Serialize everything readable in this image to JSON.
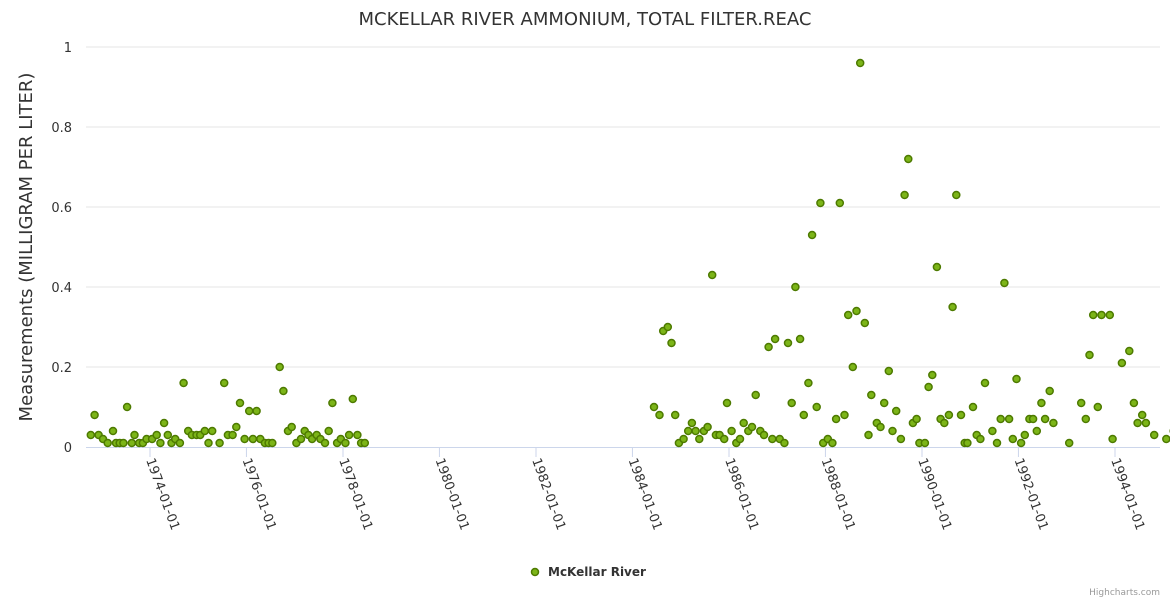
{
  "chart_data": {
    "type": "scatter",
    "title": "MCKELLAR RIVER AMMONIUM, TOTAL FILTER.REAC",
    "ylabel": "Measurements (MILLIGRAM PER LITER)",
    "xlabel": "",
    "ylim": [
      0,
      1
    ],
    "yticks": [
      "0",
      "0.2",
      "0.4",
      "0.6",
      "0.8",
      "1"
    ],
    "xticks": [
      "1974-01-01",
      "1976-01-01",
      "1978-01-01",
      "1980-01-01",
      "1982-01-01",
      "1984-01-01",
      "1986-01-01",
      "1988-01-01",
      "1990-01-01",
      "1992-01-01",
      "1994-01-01"
    ],
    "grid": "horizontal",
    "legend_position": "bottom-center",
    "colors": {
      "marker_fill": "#7cb518",
      "marker_stroke": "#4d7a00",
      "grid": "#e6e6e6",
      "axis": "#ccd6eb"
    },
    "credits": "Highcharts.com",
    "series": [
      {
        "name": "McKellar River",
        "points": [
          [
            "1972-10-10",
            0.03
          ],
          [
            "1972-11-08",
            0.08
          ],
          [
            "1972-12-08",
            0.03
          ],
          [
            "1973-01-10",
            0.02
          ],
          [
            "1973-02-15",
            0.01
          ],
          [
            "1973-03-27",
            0.04
          ],
          [
            "1973-04-19",
            0.01
          ],
          [
            "1973-05-17",
            0.01
          ],
          [
            "1973-06-14",
            0.01
          ],
          [
            "1973-07-12",
            0.1
          ],
          [
            "1973-08-16",
            0.01
          ],
          [
            "1973-09-06",
            0.03
          ],
          [
            "1973-10-11",
            0.01
          ],
          [
            "1973-11-08",
            0.01
          ],
          [
            "1973-12-06",
            0.02
          ],
          [
            "1974-01-17",
            0.02
          ],
          [
            "1974-02-21",
            0.03
          ],
          [
            "1974-03-21",
            0.01
          ],
          [
            "1974-04-18",
            0.06
          ],
          [
            "1974-05-16",
            0.03
          ],
          [
            "1974-06-13",
            0.01
          ],
          [
            "1974-07-11",
            0.02
          ],
          [
            "1974-08-15",
            0.01
          ],
          [
            "1974-09-12",
            0.16
          ],
          [
            "1974-10-17",
            0.04
          ],
          [
            "1974-11-14",
            0.03
          ],
          [
            "1974-12-19",
            0.03
          ],
          [
            "1975-01-16",
            0.03
          ],
          [
            "1975-02-20",
            0.04
          ],
          [
            "1975-03-20",
            0.01
          ],
          [
            "1975-04-17",
            0.04
          ],
          [
            "1975-06-12",
            0.01
          ],
          [
            "1975-07-17",
            0.16
          ],
          [
            "1975-08-14",
            0.03
          ],
          [
            "1975-09-18",
            0.03
          ],
          [
            "1975-10-16",
            0.05
          ],
          [
            "1975-11-13",
            0.11
          ],
          [
            "1975-12-18",
            0.02
          ],
          [
            "1976-01-22",
            0.09
          ],
          [
            "1976-02-19",
            0.02
          ],
          [
            "1976-03-18",
            0.09
          ],
          [
            "1976-04-15",
            0.02
          ],
          [
            "1976-05-20",
            0.01
          ],
          [
            "1976-06-17",
            0.01
          ],
          [
            "1976-07-15",
            0.01
          ],
          [
            "1976-09-09",
            0.2
          ],
          [
            "1976-10-07",
            0.14
          ],
          [
            "1976-11-11",
            0.04
          ],
          [
            "1976-12-09",
            0.05
          ],
          [
            "1977-01-13",
            0.01
          ],
          [
            "1977-02-17",
            0.02
          ],
          [
            "1977-03-17",
            0.04
          ],
          [
            "1977-04-14",
            0.03
          ],
          [
            "1977-05-12",
            0.02
          ],
          [
            "1977-06-16",
            0.03
          ],
          [
            "1977-07-14",
            0.02
          ],
          [
            "1977-08-18",
            0.01
          ],
          [
            "1977-09-15",
            0.04
          ],
          [
            "1977-10-13",
            0.11
          ],
          [
            "1977-11-17",
            0.01
          ],
          [
            "1977-12-15",
            0.02
          ],
          [
            "1978-01-19",
            0.01
          ],
          [
            "1978-02-16",
            0.03
          ],
          [
            "1978-03-16",
            0.12
          ],
          [
            "1978-04-20",
            0.03
          ],
          [
            "1978-05-18",
            0.01
          ],
          [
            "1978-06-15",
            0.01
          ],
          [
            "1984-06-12",
            0.1
          ],
          [
            "1984-07-24",
            0.08
          ],
          [
            "1984-08-21",
            0.29
          ],
          [
            "1984-09-25",
            0.3
          ],
          [
            "1984-10-23",
            0.26
          ],
          [
            "1984-11-20",
            0.08
          ],
          [
            "1984-12-18",
            0.01
          ],
          [
            "1985-01-22",
            0.02
          ],
          [
            "1985-02-26",
            0.04
          ],
          [
            "1985-03-26",
            0.06
          ],
          [
            "1985-04-23",
            0.04
          ],
          [
            "1985-05-21",
            0.02
          ],
          [
            "1985-06-25",
            0.04
          ],
          [
            "1985-07-23",
            0.05
          ],
          [
            "1985-08-27",
            0.43
          ],
          [
            "1985-09-24",
            0.03
          ],
          [
            "1985-10-22",
            0.03
          ],
          [
            "1985-11-26",
            0.02
          ],
          [
            "1985-12-17",
            0.11
          ],
          [
            "1986-01-21",
            0.04
          ],
          [
            "1986-02-25",
            0.01
          ],
          [
            "1986-03-25",
            0.02
          ],
          [
            "1986-04-22",
            0.06
          ],
          [
            "1986-05-27",
            0.04
          ],
          [
            "1986-06-24",
            0.05
          ],
          [
            "1986-07-22",
            0.13
          ],
          [
            "1986-08-26",
            0.04
          ],
          [
            "1986-09-23",
            0.03
          ],
          [
            "1986-10-28",
            0.25
          ],
          [
            "1986-11-25",
            0.02
          ],
          [
            "1986-12-16",
            0.27
          ],
          [
            "1987-01-20",
            0.02
          ],
          [
            "1987-02-24",
            0.01
          ],
          [
            "1987-03-24",
            0.26
          ],
          [
            "1987-04-21",
            0.11
          ],
          [
            "1987-05-19",
            0.4
          ],
          [
            "1987-06-23",
            0.27
          ],
          [
            "1987-07-21",
            0.08
          ],
          [
            "1987-08-25",
            0.16
          ],
          [
            "1987-09-22",
            0.53
          ],
          [
            "1987-10-27",
            0.1
          ],
          [
            "1987-11-24",
            0.61
          ],
          [
            "1987-12-15",
            0.01
          ],
          [
            "1988-01-19",
            0.02
          ],
          [
            "1988-02-23",
            0.01
          ],
          [
            "1988-03-22",
            0.07
          ],
          [
            "1988-04-19",
            0.61
          ],
          [
            "1988-05-24",
            0.08
          ],
          [
            "1988-06-21",
            0.33
          ],
          [
            "1988-07-26",
            0.2
          ],
          [
            "1988-08-23",
            0.34
          ],
          [
            "1988-09-20",
            0.96
          ],
          [
            "1988-10-25",
            0.31
          ],
          [
            "1988-11-22",
            0.03
          ],
          [
            "1988-12-13",
            0.13
          ],
          [
            "1989-01-24",
            0.06
          ],
          [
            "1989-02-21",
            0.05
          ],
          [
            "1989-03-21",
            0.11
          ],
          [
            "1989-04-25",
            0.19
          ],
          [
            "1989-05-23",
            0.04
          ],
          [
            "1989-06-20",
            0.09
          ],
          [
            "1989-07-25",
            0.02
          ],
          [
            "1989-08-22",
            0.63
          ],
          [
            "1989-09-19",
            0.72
          ],
          [
            "1989-10-24",
            0.06
          ],
          [
            "1989-11-21",
            0.07
          ],
          [
            "1989-12-12",
            0.01
          ],
          [
            "1990-01-23",
            0.01
          ],
          [
            "1990-02-20",
            0.15
          ],
          [
            "1990-03-20",
            0.18
          ],
          [
            "1990-04-24",
            0.45
          ],
          [
            "1990-05-22",
            0.07
          ],
          [
            "1990-06-19",
            0.06
          ],
          [
            "1990-07-24",
            0.08
          ],
          [
            "1990-08-21",
            0.35
          ],
          [
            "1990-09-18",
            0.63
          ],
          [
            "1990-10-23",
            0.08
          ],
          [
            "1990-11-20",
            0.01
          ],
          [
            "1990-12-11",
            0.01
          ],
          [
            "1991-01-22",
            0.1
          ],
          [
            "1991-02-19",
            0.03
          ],
          [
            "1991-03-19",
            0.02
          ],
          [
            "1991-04-23",
            0.16
          ],
          [
            "1991-06-18",
            0.04
          ],
          [
            "1991-07-23",
            0.01
          ],
          [
            "1991-08-20",
            0.07
          ],
          [
            "1991-09-17",
            0.41
          ],
          [
            "1991-10-22",
            0.07
          ],
          [
            "1991-11-19",
            0.02
          ],
          [
            "1991-12-17",
            0.17
          ],
          [
            "1992-01-21",
            0.01
          ],
          [
            "1992-02-18",
            0.03
          ],
          [
            "1992-03-24",
            0.07
          ],
          [
            "1992-04-21",
            0.07
          ],
          [
            "1992-05-19",
            0.04
          ],
          [
            "1992-06-23",
            0.11
          ],
          [
            "1992-07-21",
            0.07
          ],
          [
            "1992-08-25",
            0.14
          ],
          [
            "1992-09-22",
            0.06
          ],
          [
            "1993-01-19",
            0.01
          ],
          [
            "1993-04-20",
            0.11
          ],
          [
            "1993-05-25",
            0.07
          ],
          [
            "1993-06-22",
            0.23
          ],
          [
            "1993-07-20",
            0.33
          ],
          [
            "1993-08-24",
            0.1
          ],
          [
            "1993-09-21",
            0.33
          ],
          [
            "1993-11-23",
            0.33
          ],
          [
            "1993-12-14",
            0.02
          ],
          [
            "1994-02-22",
            0.21
          ],
          [
            "1994-04-19",
            0.24
          ],
          [
            "1994-05-24",
            0.11
          ],
          [
            "1994-06-21",
            0.06
          ],
          [
            "1994-07-26",
            0.08
          ],
          [
            "1994-08-23",
            0.06
          ],
          [
            "1994-10-25",
            0.03
          ],
          [
            "1995-01-24",
            0.02
          ],
          [
            "1995-03-21",
            0.04
          ]
        ]
      }
    ]
  }
}
